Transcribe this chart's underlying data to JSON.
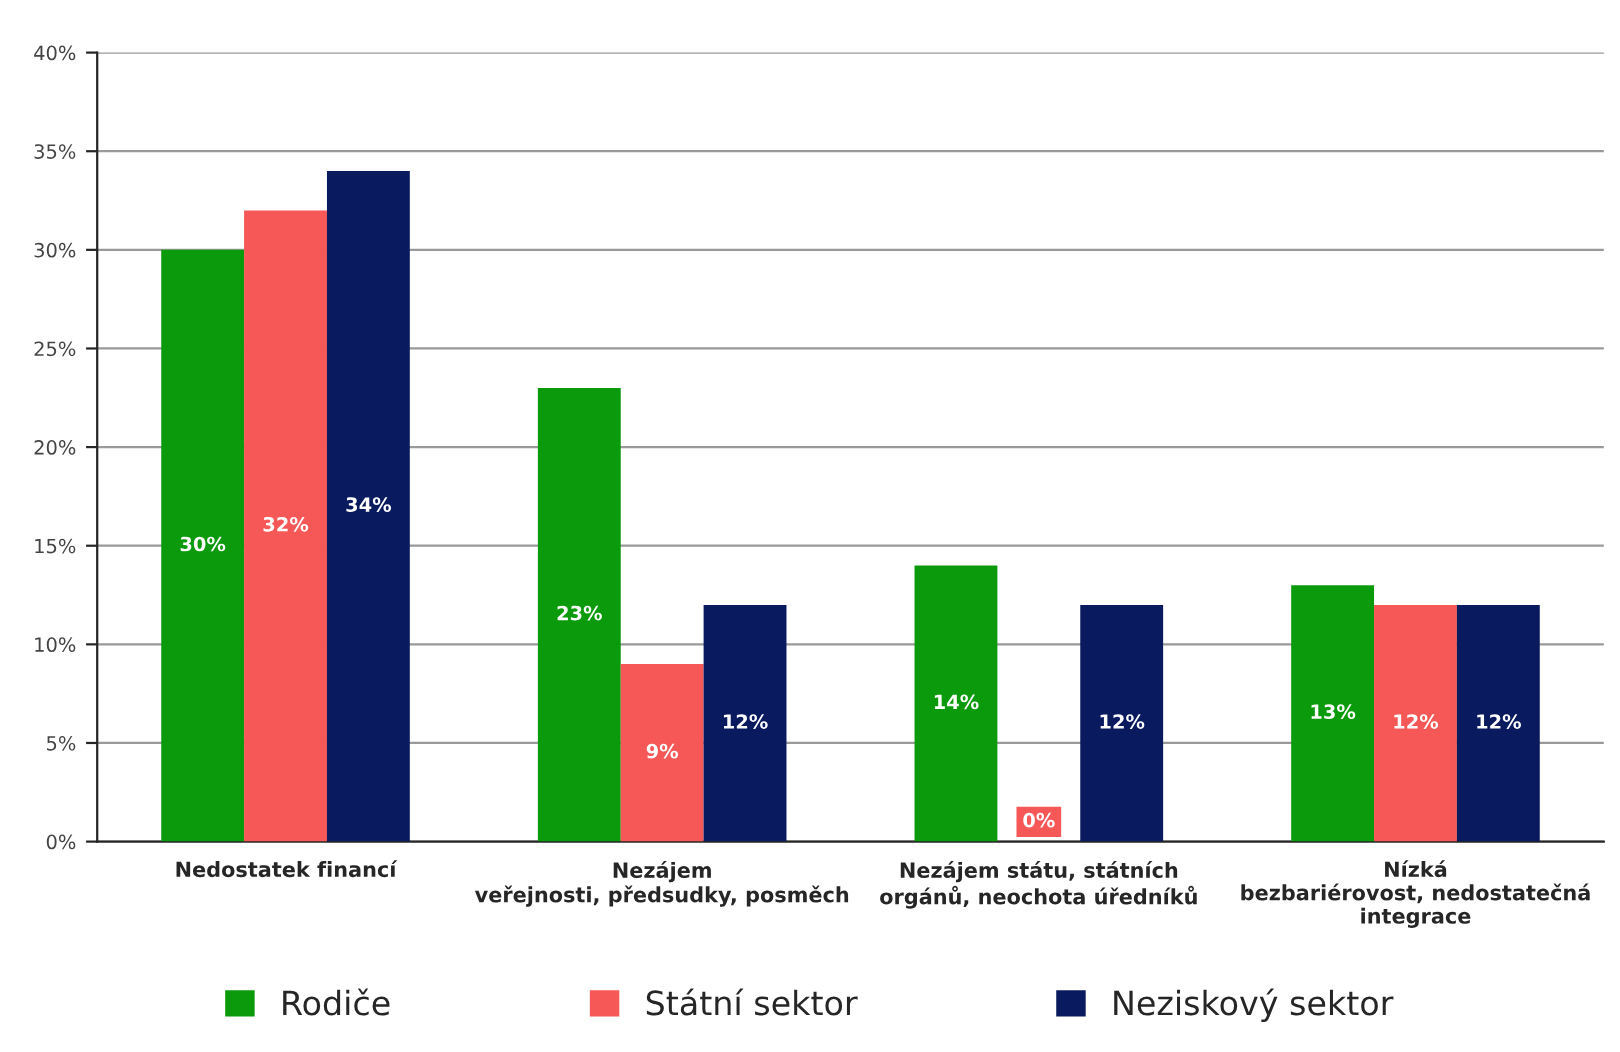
{
  "chart_data": {
    "type": "bar",
    "categories": [
      "Nedostatek financí",
      "Nezájem\nveřejnosti, předsudky, posměch",
      "Nezájem státu, státních\norgánů, neochota úředníků",
      "Nízká\nbezbariérovost, nedostatečná\nintegrace"
    ],
    "series": [
      {
        "name": "Rodiče",
        "color": "#0b9a0b",
        "values": [
          30,
          23,
          14,
          13
        ],
        "value_labels": [
          "30%",
          "23%",
          "14%",
          "13%"
        ]
      },
      {
        "name": "Státní sektor",
        "color": "#f65757",
        "values": [
          32,
          9,
          0,
          12
        ],
        "value_labels": [
          "32%",
          "9%",
          "0%",
          "12%"
        ]
      },
      {
        "name": "Neziskový sektor",
        "color": "#0a1a5e",
        "values": [
          34,
          12,
          12,
          12
        ],
        "value_labels": [
          "34%",
          "12%",
          "12%",
          "12%"
        ]
      }
    ],
    "ylim": [
      0,
      40
    ],
    "yticks": [
      {
        "value": 0,
        "label": "0%"
      },
      {
        "value": 5,
        "label": "5%"
      },
      {
        "value": 10,
        "label": "10%"
      },
      {
        "value": 15,
        "label": "15%"
      },
      {
        "value": 20,
        "label": "20%"
      },
      {
        "value": 25,
        "label": "25%"
      },
      {
        "value": 30,
        "label": "30%"
      },
      {
        "value": 35,
        "label": "35%"
      },
      {
        "value": 40,
        "label": "40%"
      }
    ],
    "grid": "y",
    "legend": "bottom"
  }
}
